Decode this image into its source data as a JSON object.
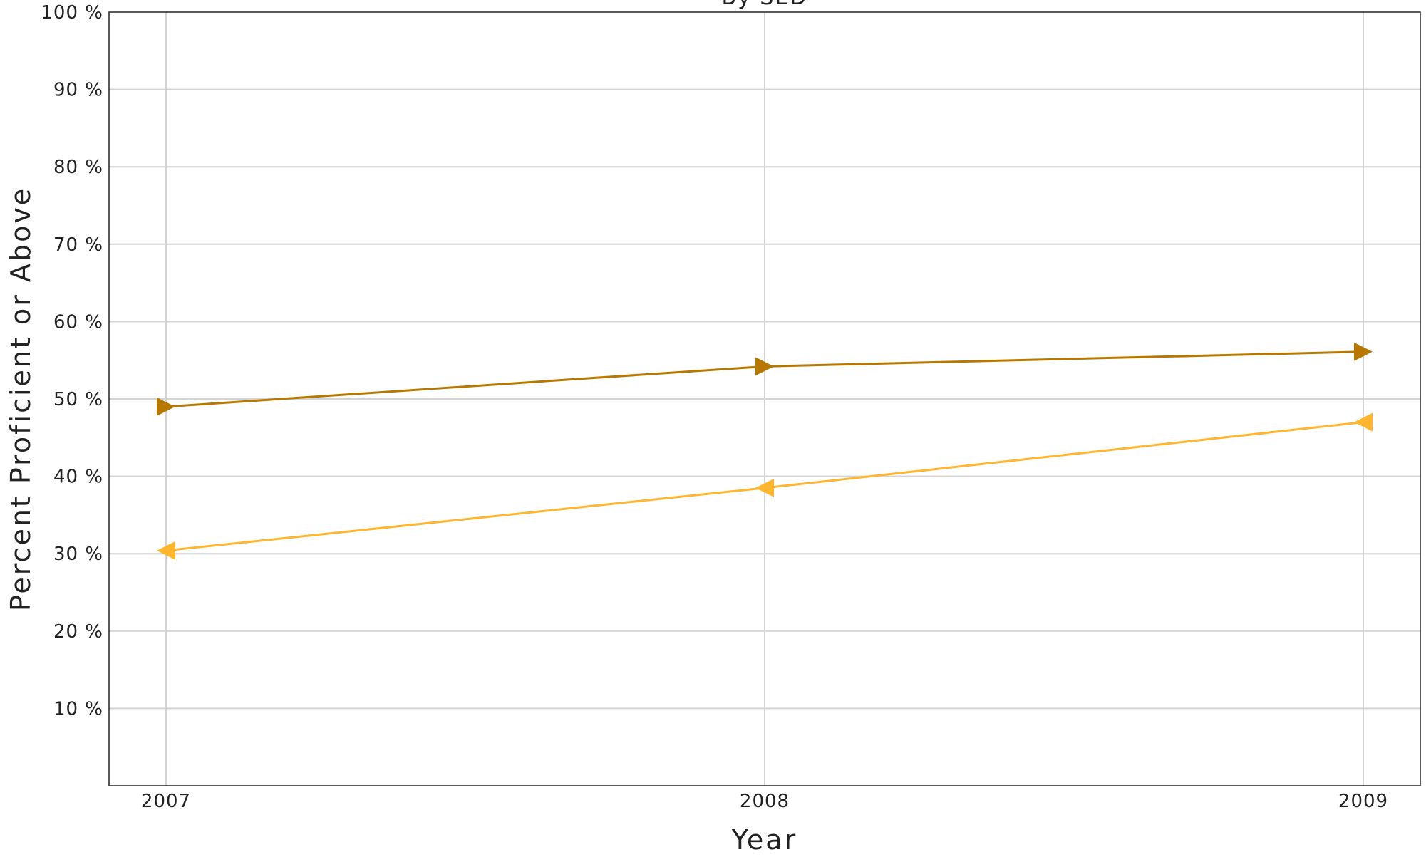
{
  "chart_data": {
    "type": "line",
    "title": "By SED",
    "xlabel": "Year",
    "ylabel": "Percent Proficient or Above",
    "categories": [
      "2007",
      "2008",
      "2009"
    ],
    "y_ticks": [
      "10 %",
      "20 %",
      "30 %",
      "40 %",
      "50 %",
      "60 %",
      "70 %",
      "80 %",
      "90 %",
      "100 %"
    ],
    "ylim": [
      0,
      100
    ],
    "grid": true,
    "legend": "none",
    "series": [
      {
        "values": [
          49.0,
          54.2,
          56.1
        ],
        "color": "#b87800",
        "marker": "triangle-right"
      },
      {
        "values": [
          30.4,
          38.5,
          47.0
        ],
        "color": "#ffb52e",
        "marker": "triangle-left"
      }
    ]
  }
}
